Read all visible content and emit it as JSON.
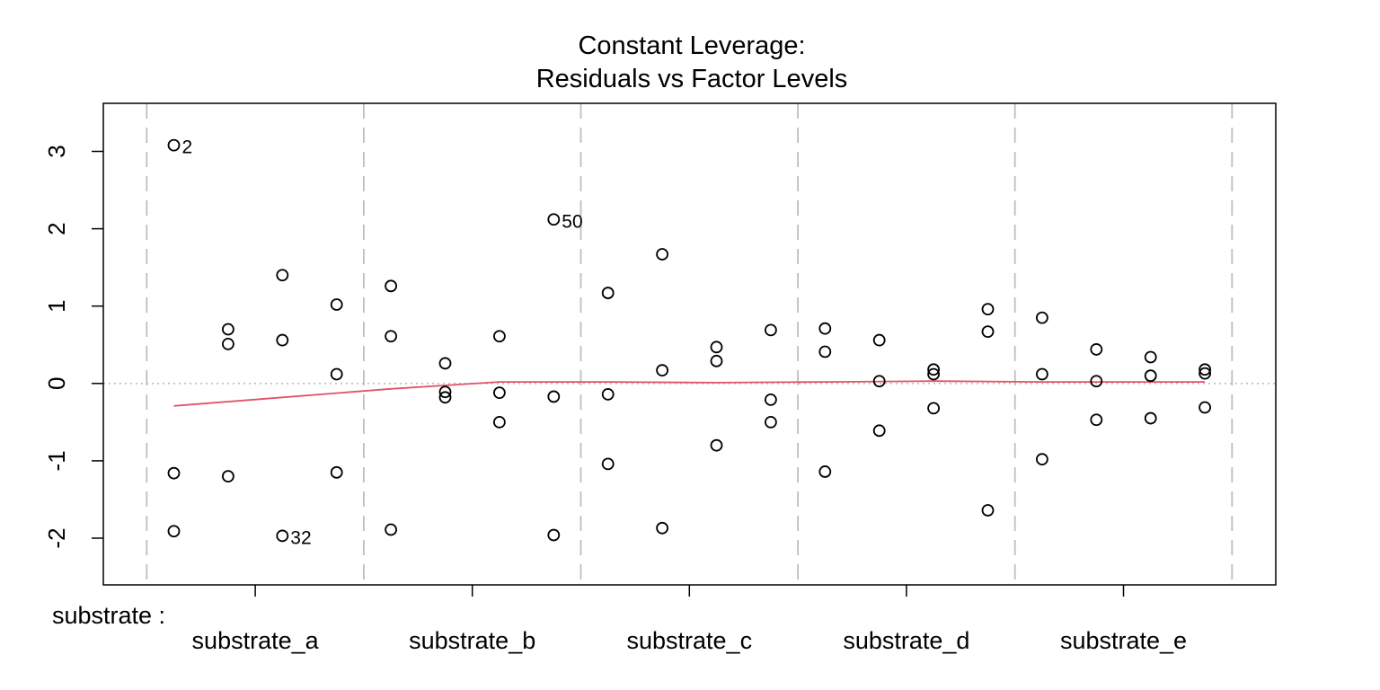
{
  "chart_data": {
    "type": "scatter",
    "title": "Constant Leverage:",
    "subtitle": "Residuals vs Factor Levels",
    "factor_label": "substrate :",
    "categories": [
      "substrate_a",
      "substrate_b",
      "substrate_c",
      "substrate_d",
      "substrate_e"
    ],
    "ylim": [
      -2.6,
      3.7
    ],
    "yticks": [
      -2,
      -1,
      0,
      1,
      2,
      3
    ],
    "ytick_labels": [
      "-2",
      "-1",
      "0",
      "1",
      "2",
      "3"
    ],
    "grid": false,
    "zero_line": "dotted gray",
    "group_separators": "dashed gray",
    "points": [
      {
        "i": 1,
        "y": 3.08,
        "label": "2"
      },
      {
        "i": 1,
        "y": -1.16
      },
      {
        "i": 1,
        "y": -1.91
      },
      {
        "i": 2,
        "y": 0.7
      },
      {
        "i": 2,
        "y": 0.51
      },
      {
        "i": 2,
        "y": -1.2
      },
      {
        "i": 3,
        "y": 1.4
      },
      {
        "i": 3,
        "y": 0.56
      },
      {
        "i": 3,
        "y": -1.97,
        "label": "32"
      },
      {
        "i": 4,
        "y": 1.02
      },
      {
        "i": 4,
        "y": 0.12
      },
      {
        "i": 4,
        "y": -1.15
      },
      {
        "i": 5,
        "y": 1.26
      },
      {
        "i": 5,
        "y": 0.61
      },
      {
        "i": 5,
        "y": -1.89
      },
      {
        "i": 6,
        "y": 0.26
      },
      {
        "i": 6,
        "y": -0.11
      },
      {
        "i": 6,
        "y": -0.18
      },
      {
        "i": 7,
        "y": 0.61
      },
      {
        "i": 7,
        "y": -0.12
      },
      {
        "i": 7,
        "y": -0.5
      },
      {
        "i": 8,
        "y": 2.12,
        "label": "50"
      },
      {
        "i": 8,
        "y": -0.17
      },
      {
        "i": 8,
        "y": -1.96
      },
      {
        "i": 9,
        "y": 1.17
      },
      {
        "i": 9,
        "y": -0.14
      },
      {
        "i": 9,
        "y": -1.04
      },
      {
        "i": 10,
        "y": 1.67
      },
      {
        "i": 10,
        "y": 0.17
      },
      {
        "i": 10,
        "y": -1.87
      },
      {
        "i": 11,
        "y": 0.47
      },
      {
        "i": 11,
        "y": 0.29
      },
      {
        "i": 11,
        "y": -0.8
      },
      {
        "i": 12,
        "y": 0.69
      },
      {
        "i": 12,
        "y": -0.21
      },
      {
        "i": 12,
        "y": -0.5
      },
      {
        "i": 13,
        "y": 0.71
      },
      {
        "i": 13,
        "y": 0.41
      },
      {
        "i": 13,
        "y": -1.14
      },
      {
        "i": 14,
        "y": 0.56
      },
      {
        "i": 14,
        "y": 0.03
      },
      {
        "i": 14,
        "y": -0.61
      },
      {
        "i": 15,
        "y": 0.18
      },
      {
        "i": 15,
        "y": 0.12
      },
      {
        "i": 15,
        "y": -0.32
      },
      {
        "i": 16,
        "y": 0.96
      },
      {
        "i": 16,
        "y": 0.67
      },
      {
        "i": 16,
        "y": -1.64
      },
      {
        "i": 17,
        "y": 0.85
      },
      {
        "i": 17,
        "y": 0.12
      },
      {
        "i": 17,
        "y": -0.98
      },
      {
        "i": 18,
        "y": 0.44
      },
      {
        "i": 18,
        "y": 0.03
      },
      {
        "i": 18,
        "y": -0.47
      },
      {
        "i": 19,
        "y": 0.34
      },
      {
        "i": 19,
        "y": 0.1
      },
      {
        "i": 19,
        "y": -0.45
      },
      {
        "i": 20,
        "y": 0.18
      },
      {
        "i": 20,
        "y": 0.13
      },
      {
        "i": 20,
        "y": -0.31
      }
    ],
    "smooth_line": {
      "color": "#DF536B",
      "points": [
        [
          1,
          -0.29
        ],
        [
          3,
          -0.18
        ],
        [
          5,
          -0.07
        ],
        [
          7,
          0.02
        ],
        [
          9,
          0.02
        ],
        [
          11,
          0.01
        ],
        [
          13,
          0.02
        ],
        [
          15,
          0.03
        ],
        [
          17,
          0.02
        ],
        [
          19,
          0.02
        ],
        [
          20,
          0.02
        ]
      ]
    },
    "colors": {
      "points": "#000000",
      "smooth": "#DF536B",
      "separators": "#BEBEBE",
      "zero_line": "#BEBEBE"
    }
  }
}
